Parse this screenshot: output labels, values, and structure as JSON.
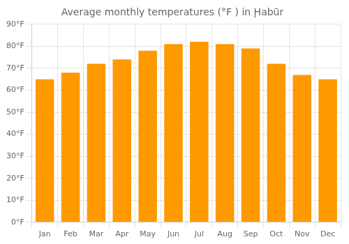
{
  "chart_data": {
    "type": "bar",
    "title": "Average monthly temperatures (°F ) in Ḩabūr",
    "categories": [
      "Jan",
      "Feb",
      "Mar",
      "Apr",
      "May",
      "Jun",
      "Jul",
      "Aug",
      "Sep",
      "Oct",
      "Nov",
      "Dec"
    ],
    "values": [
      65,
      68,
      72,
      74,
      78,
      81,
      82,
      81,
      79,
      72,
      67,
      65
    ],
    "color": "#FF9900",
    "ylim": [
      0,
      90
    ],
    "yticks": [
      {
        "value": 0,
        "label": "0°F"
      },
      {
        "value": 10,
        "label": "10°F"
      },
      {
        "value": 20,
        "label": "20°F"
      },
      {
        "value": 30,
        "label": "30°F"
      },
      {
        "value": 40,
        "label": "40°F"
      },
      {
        "value": 50,
        "label": "50°F"
      },
      {
        "value": 60,
        "label": "60°F"
      },
      {
        "value": 70,
        "label": "70°F"
      },
      {
        "value": 80,
        "label": "80°F"
      },
      {
        "value": 90,
        "label": "90°F"
      }
    ],
    "grid": true
  }
}
